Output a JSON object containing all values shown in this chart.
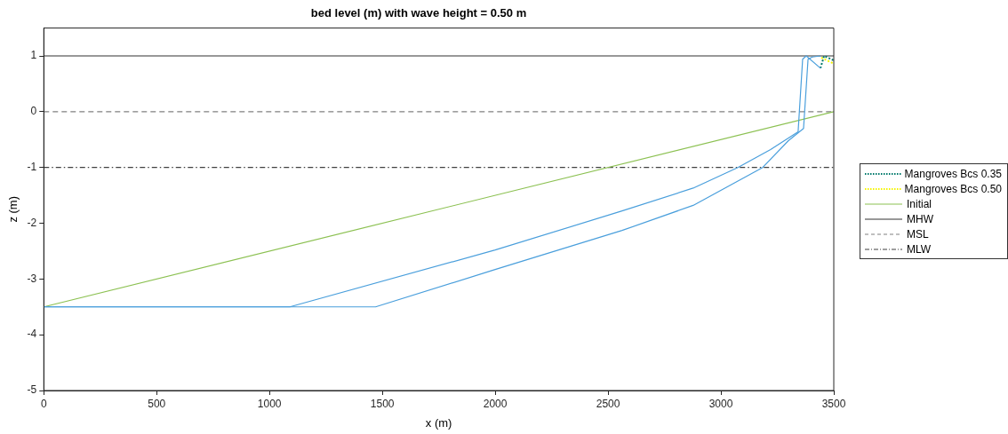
{
  "chart_data": {
    "type": "line",
    "title": "bed level (m) with wave height = 0.50 m",
    "xlabel": "x (m)",
    "ylabel": "z (m)",
    "xlim": [
      0,
      3500
    ],
    "xticks": [
      0,
      500,
      1000,
      1500,
      2000,
      2500,
      3000,
      3500
    ],
    "ylim": [
      -5,
      1.5
    ],
    "yticks": [
      -5,
      -4,
      -3,
      -2,
      -1,
      0,
      1
    ],
    "grid": false,
    "legend": "right",
    "marker": "none",
    "series": [
      {
        "color": "#4a9fdc",
        "x": [
          0,
          1090,
          2000,
          2562,
          2877,
          3075,
          3220,
          3342,
          3362,
          3378,
          3441
        ],
        "values": [
          -3.5,
          -3.5,
          -2.48,
          -1.78,
          -1.37,
          -1.0,
          -0.68,
          -0.36,
          0.94,
          1.0,
          0.78
        ]
      },
      {
        "color": "#4a9fdc",
        "x": [
          0,
          1470,
          2000,
          2562,
          2877,
          3185,
          3299,
          3366,
          3386,
          3405,
          3441
        ],
        "values": [
          -3.5,
          -3.5,
          -2.83,
          -2.13,
          -1.68,
          -1.0,
          -0.52,
          -0.3,
          0.94,
          0.98,
          1.0
        ]
      },
      {
        "name": "Mangroves Bcs 0.35",
        "color": "#00796b",
        "line_style": "dotted",
        "x": [
          3441,
          3457,
          3500
        ],
        "values": [
          0.78,
          1.0,
          0.92
        ]
      },
      {
        "name": "Mangroves Bcs 0.50",
        "color": "#f5f500",
        "line_style": "dotted",
        "x": [
          3445,
          3500
        ],
        "values": [
          0.97,
          0.86
        ]
      },
      {
        "name": "Initial",
        "color": "#8cc152",
        "line_style": "solid",
        "x": [
          0,
          3500
        ],
        "values": [
          -3.5,
          0
        ]
      },
      {
        "name": "MHW",
        "color": "#333333",
        "line_style": "solid",
        "x": [
          0,
          3500
        ],
        "values": [
          1,
          1
        ]
      },
      {
        "name": "MSL",
        "color": "#808080",
        "line_style": "dashed",
        "x": [
          0,
          3500
        ],
        "values": [
          0,
          0
        ]
      },
      {
        "name": "MLW",
        "color": "#404040",
        "line_style": "dashdot",
        "x": [
          0,
          3500
        ],
        "values": [
          -1,
          -1
        ]
      }
    ]
  }
}
